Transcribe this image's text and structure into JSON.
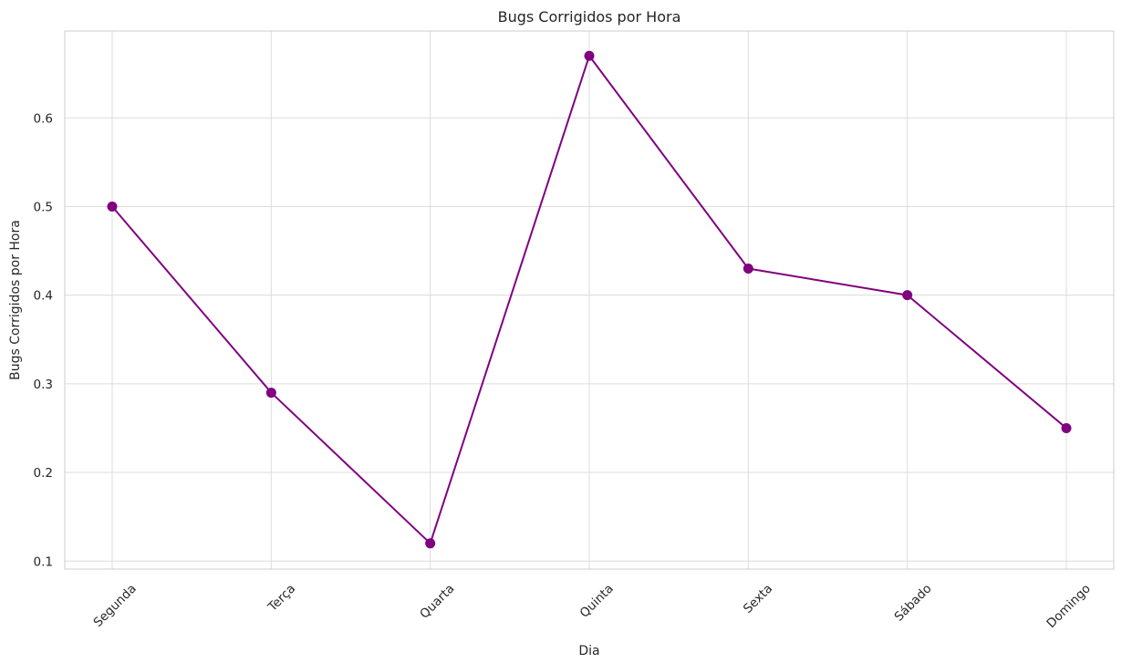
{
  "chart_data": {
    "type": "line",
    "title": "Bugs Corrigidos por Hora",
    "xlabel": "Dia",
    "ylabel": "Bugs Corrigidos por Hora",
    "categories": [
      "Segunda",
      "Terça",
      "Quarta",
      "Quinta",
      "Sexta",
      "Sábado",
      "Domingo"
    ],
    "series": [
      {
        "values": [
          0.5,
          0.29,
          0.12,
          0.67,
          0.43,
          0.4,
          0.25
        ]
      }
    ],
    "y_ticks": [
      "0.1",
      "0.2",
      "0.3",
      "0.4",
      "0.5",
      "0.6"
    ],
    "ylim": [
      0.091,
      0.698
    ],
    "grid": true,
    "line_color": "#800080",
    "marker": "circle"
  }
}
